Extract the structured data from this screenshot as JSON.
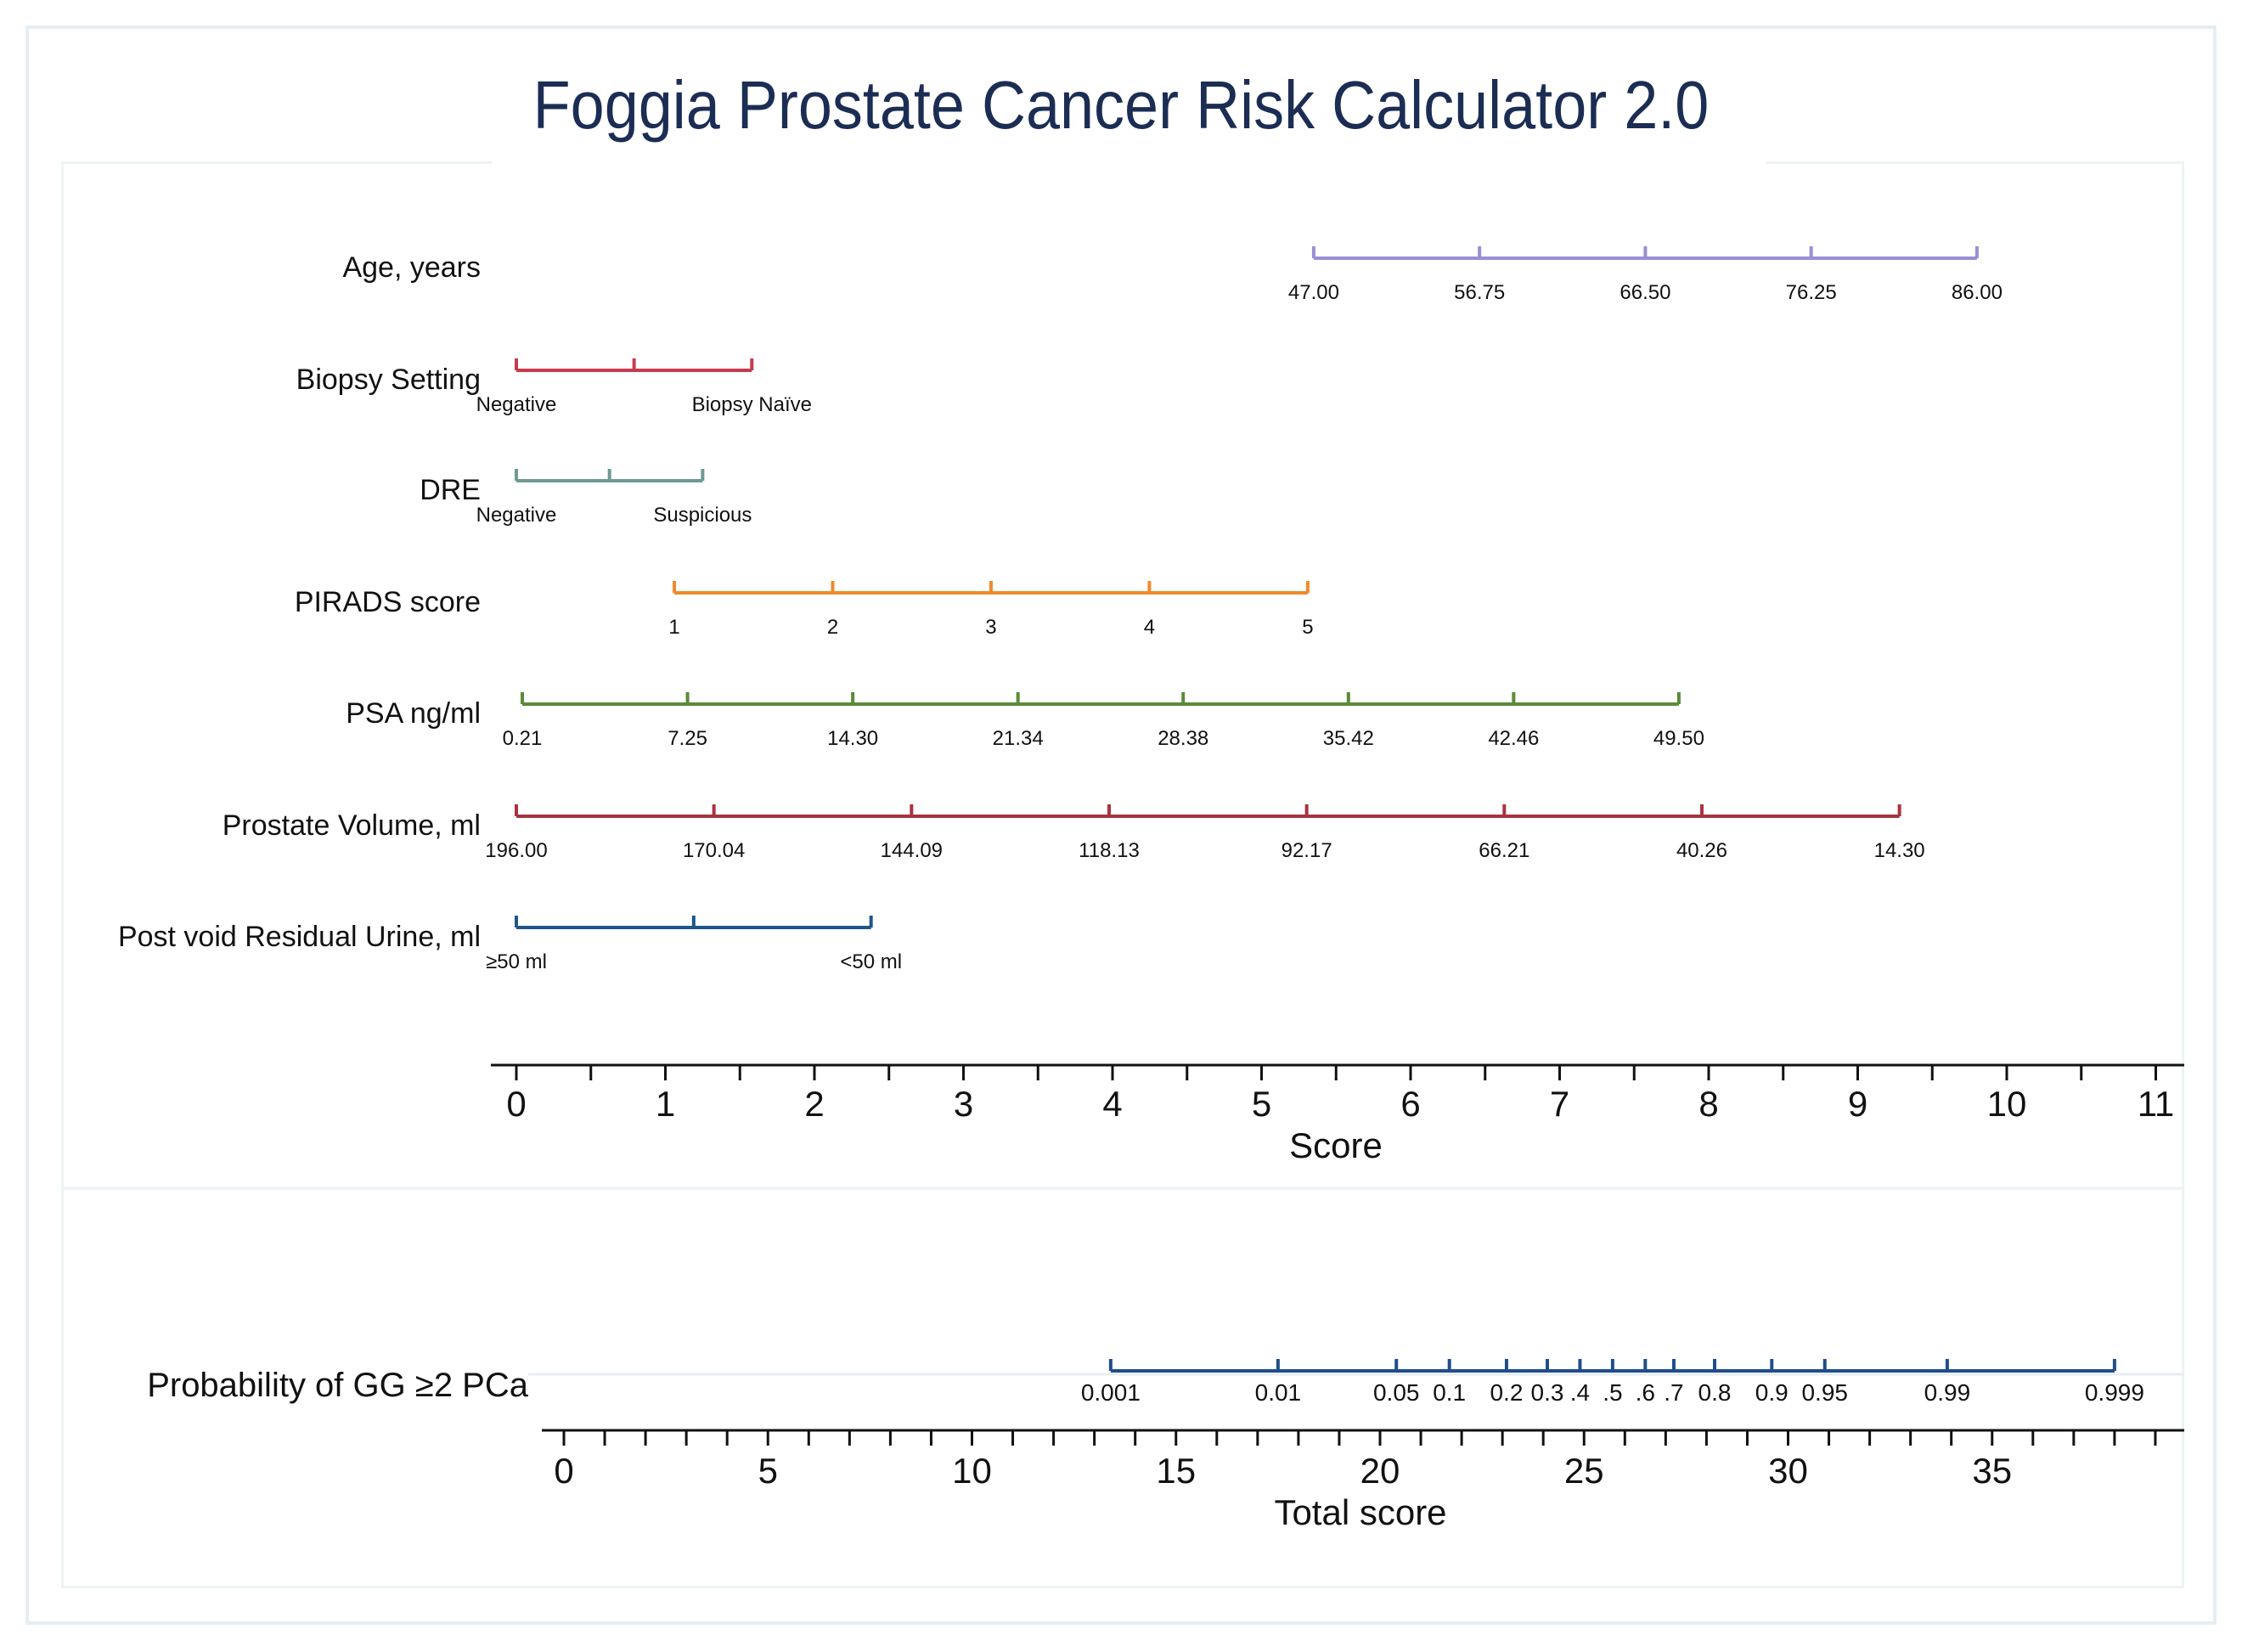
{
  "chart_data": {
    "type": "nomogram",
    "title": "Foggia Prostate Cancer Risk Calculator 2.0",
    "score_axis": {
      "label": "Score",
      "range": [
        0,
        11
      ],
      "ticks": [
        "0",
        "1",
        "2",
        "3",
        "4",
        "5",
        "6",
        "7",
        "8",
        "9",
        "10",
        "11"
      ]
    },
    "variables": [
      {
        "name": "Age, years",
        "color": "#9a8fd6",
        "start": 5.35,
        "end": 9.8,
        "labels": [
          "47.00",
          "56.75",
          "66.50",
          "76.25",
          "86.00"
        ]
      },
      {
        "name": "Biopsy Setting",
        "color": "#c83a4a",
        "start": 0.0,
        "end": 1.58,
        "mid_ticks": [
          0.79
        ],
        "labels": [
          "Negative",
          "Biopsy Naïve"
        ]
      },
      {
        "name": "DRE",
        "color": "#6e9a93",
        "start": 0.0,
        "end": 1.25,
        "mid_ticks": [
          0.625
        ],
        "labels": [
          "Negative",
          "Suspicious"
        ]
      },
      {
        "name": "PIRADS score",
        "color": "#ef8a2a",
        "start": 1.06,
        "end": 5.31,
        "labels": [
          "1",
          "2",
          "3",
          "4",
          "5"
        ]
      },
      {
        "name": "PSA ng/ml",
        "color": "#5a8a3a",
        "start": 0.04,
        "end": 7.8,
        "labels": [
          "0.21",
          "7.25",
          "14.30",
          "21.34",
          "28.38",
          "35.42",
          "42.46",
          "49.50"
        ]
      },
      {
        "name": "Prostate Volume, ml",
        "color": "#a8333f",
        "start": 0.0,
        "end": 9.28,
        "labels": [
          "196.00",
          "170.04",
          "144.09",
          "118.13",
          "92.17",
          "66.21",
          "40.26",
          "14.30"
        ]
      },
      {
        "name": "Post void Residual Urine, ml",
        "color": "#1f5688",
        "start": 0.0,
        "end": 2.38,
        "mid_ticks": [
          1.19
        ],
        "labels": [
          "≥50 ml",
          "<50 ml"
        ]
      }
    ],
    "total_score_axis": {
      "label": "Total score",
      "range": [
        0,
        39
      ],
      "ticks": [
        "0",
        "5",
        "10",
        "15",
        "20",
        "25",
        "30",
        "35"
      ]
    },
    "probability": {
      "name": "Probability of GG ≥2 PCa",
      "color": "#1f4e8a",
      "points": [
        {
          "label": "0.001",
          "score": 13.4
        },
        {
          "label": "0.01",
          "score": 17.5
        },
        {
          "label": "0.05",
          "score": 20.4
        },
        {
          "label": "0.1",
          "score": 21.7
        },
        {
          "label": "0.2",
          "score": 23.1
        },
        {
          "label": "0.3",
          "score": 24.1
        },
        {
          "label": ".4",
          "score": 24.9
        },
        {
          "label": ".5",
          "score": 25.7
        },
        {
          "label": ".6",
          "score": 26.5
        },
        {
          "label": ".7",
          "score": 27.2
        },
        {
          "label": "0.8",
          "score": 28.2
        },
        {
          "label": "0.9",
          "score": 29.6
        },
        {
          "label": "0.95",
          "score": 30.9
        },
        {
          "label": "0.99",
          "score": 33.9
        },
        {
          "label": "0.999",
          "score": 38.0
        }
      ]
    }
  }
}
